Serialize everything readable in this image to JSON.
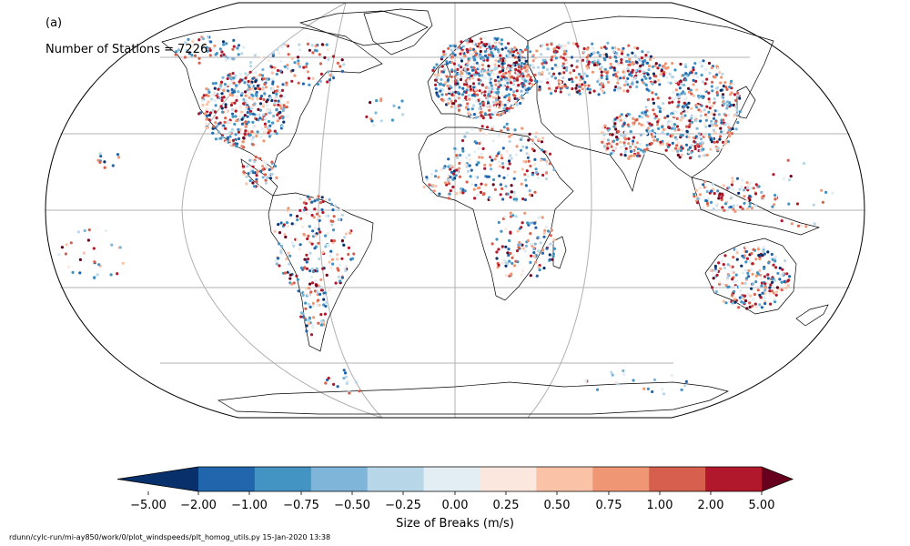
{
  "panel_label": "(a)",
  "station_count": "Number of Stations = 7226",
  "colorbar": {
    "label": "Size of Breaks (m/s)",
    "ticks": [
      "−5.00",
      "−2.00",
      "−1.00",
      "−0.75",
      "−0.50",
      "−0.25",
      "0.00",
      "0.25",
      "0.50",
      "0.75",
      "1.00",
      "2.00",
      "5.00"
    ],
    "colors": [
      "#08306b",
      "#2166ac",
      "#4393c3",
      "#7fb5d8",
      "#b7d7e8",
      "#e2edf4",
      "#fce7df",
      "#fac2a7",
      "#ef9774",
      "#d6604d",
      "#b2182b",
      "#67001f"
    ],
    "extend": "both"
  },
  "footer": "rdunn/cylc-run/mi-ay850/work/0/plot_windspeeds/plt_homog_utils.py   15-Jan-2020 13:38",
  "map": {
    "projection": "Robinson",
    "gridlines": true,
    "ocean_color": "#ffffff",
    "land_outline_color": "#000000"
  }
}
